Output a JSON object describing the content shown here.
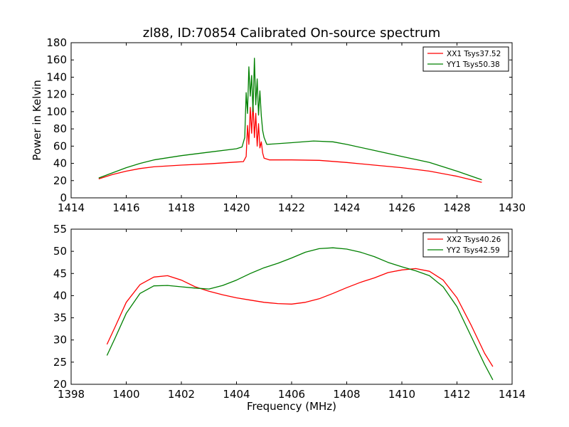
{
  "chart_data": [
    {
      "type": "line",
      "title": "zl88, ID:70854 Calibrated On-source spectrum",
      "xlabel": "",
      "ylabel": "Power in Kelvin",
      "xlim": [
        1414,
        1430
      ],
      "ylim": [
        0,
        180
      ],
      "xticks": [
        "1414",
        "1416",
        "1418",
        "1420",
        "1422",
        "1424",
        "1426",
        "1428",
        "1430"
      ],
      "yticks": [
        "0",
        "20",
        "40",
        "60",
        "80",
        "100",
        "120",
        "140",
        "160",
        "180"
      ],
      "grid": false,
      "legend_position": "top-right",
      "series": [
        {
          "name": "XX1 Tsys37.52",
          "color": "#ff0000",
          "x": [
            1415.0,
            1415.5,
            1416.0,
            1416.5,
            1417.0,
            1418.0,
            1419.0,
            1420.0,
            1420.25,
            1420.35,
            1420.4,
            1420.45,
            1420.5,
            1420.55,
            1420.6,
            1420.65,
            1420.7,
            1420.75,
            1420.8,
            1420.85,
            1420.9,
            1420.95,
            1421.0,
            1421.2,
            1422.0,
            1423.0,
            1424.0,
            1425.0,
            1426.0,
            1427.0,
            1428.0,
            1428.9
          ],
          "y": [
            22,
            27,
            31,
            34,
            36,
            38,
            39.5,
            41.5,
            42,
            48,
            84,
            62,
            105,
            75,
            110,
            70,
            98,
            60,
            86,
            58,
            65,
            52,
            46,
            44,
            44,
            43.5,
            41,
            38,
            35,
            31,
            25,
            18
          ]
        },
        {
          "name": "YY1 Tsys50.38",
          "color": "#008000",
          "x": [
            1415.0,
            1415.5,
            1416.0,
            1416.5,
            1417.0,
            1418.0,
            1419.0,
            1420.0,
            1420.2,
            1420.3,
            1420.35,
            1420.4,
            1420.45,
            1420.5,
            1420.55,
            1420.6,
            1420.65,
            1420.7,
            1420.75,
            1420.8,
            1420.85,
            1420.9,
            1420.95,
            1421.0,
            1421.1,
            1422.0,
            1422.8,
            1423.5,
            1424.0,
            1425.0,
            1426.0,
            1427.0,
            1428.0,
            1428.9
          ],
          "y": [
            23,
            29,
            35,
            40,
            44,
            49,
            53,
            57,
            59,
            70,
            122,
            98,
            152,
            118,
            142,
            100,
            162,
            108,
            138,
            96,
            124,
            95,
            78,
            70,
            62,
            64,
            66,
            65,
            62,
            55,
            48,
            41,
            31,
            21
          ]
        }
      ]
    },
    {
      "type": "line",
      "title": "",
      "xlabel": "Frequency (MHz)",
      "ylabel": "",
      "xlim": [
        1398,
        1414
      ],
      "ylim": [
        20,
        55
      ],
      "xticks": [
        "1398",
        "1400",
        "1402",
        "1404",
        "1406",
        "1408",
        "1410",
        "1412",
        "1414"
      ],
      "yticks": [
        "20",
        "25",
        "30",
        "35",
        "40",
        "45",
        "50",
        "55"
      ],
      "grid": false,
      "legend_position": "top-right",
      "series": [
        {
          "name": "XX2 Tsys40.26",
          "color": "#ff0000",
          "x": [
            1399.3,
            1399.6,
            1400.0,
            1400.5,
            1401.0,
            1401.5,
            1402.0,
            1402.5,
            1403.0,
            1403.5,
            1404.0,
            1404.5,
            1405.0,
            1405.5,
            1406.0,
            1406.5,
            1407.0,
            1407.5,
            1408.0,
            1408.5,
            1409.0,
            1409.5,
            1410.0,
            1410.5,
            1411.0,
            1411.5,
            1412.0,
            1412.5,
            1413.0,
            1413.3
          ],
          "y": [
            29,
            33,
            38.5,
            42.5,
            44.2,
            44.5,
            43.5,
            42,
            41,
            40.2,
            39.5,
            39,
            38.5,
            38.2,
            38.1,
            38.5,
            39.3,
            40.5,
            41.8,
            43,
            44,
            45.2,
            45.8,
            46.1,
            45.5,
            43.5,
            39.5,
            33.5,
            27,
            24
          ]
        },
        {
          "name": "YY2 Tsys42.59",
          "color": "#008000",
          "x": [
            1399.3,
            1399.6,
            1400.0,
            1400.5,
            1401.0,
            1401.5,
            1402.0,
            1402.5,
            1403.0,
            1403.5,
            1404.0,
            1404.5,
            1405.0,
            1405.5,
            1406.0,
            1406.5,
            1407.0,
            1407.5,
            1408.0,
            1408.5,
            1409.0,
            1409.5,
            1410.0,
            1410.5,
            1411.0,
            1411.5,
            1412.0,
            1412.5,
            1413.0,
            1413.3
          ],
          "y": [
            26.5,
            30.5,
            36,
            40.5,
            42.2,
            42.3,
            42,
            41.7,
            41.5,
            42.3,
            43.5,
            45,
            46.3,
            47.3,
            48.5,
            49.8,
            50.6,
            50.8,
            50.5,
            49.8,
            48.8,
            47.5,
            46.5,
            45.6,
            44.5,
            42,
            37.5,
            31,
            24.5,
            21
          ]
        }
      ]
    }
  ]
}
